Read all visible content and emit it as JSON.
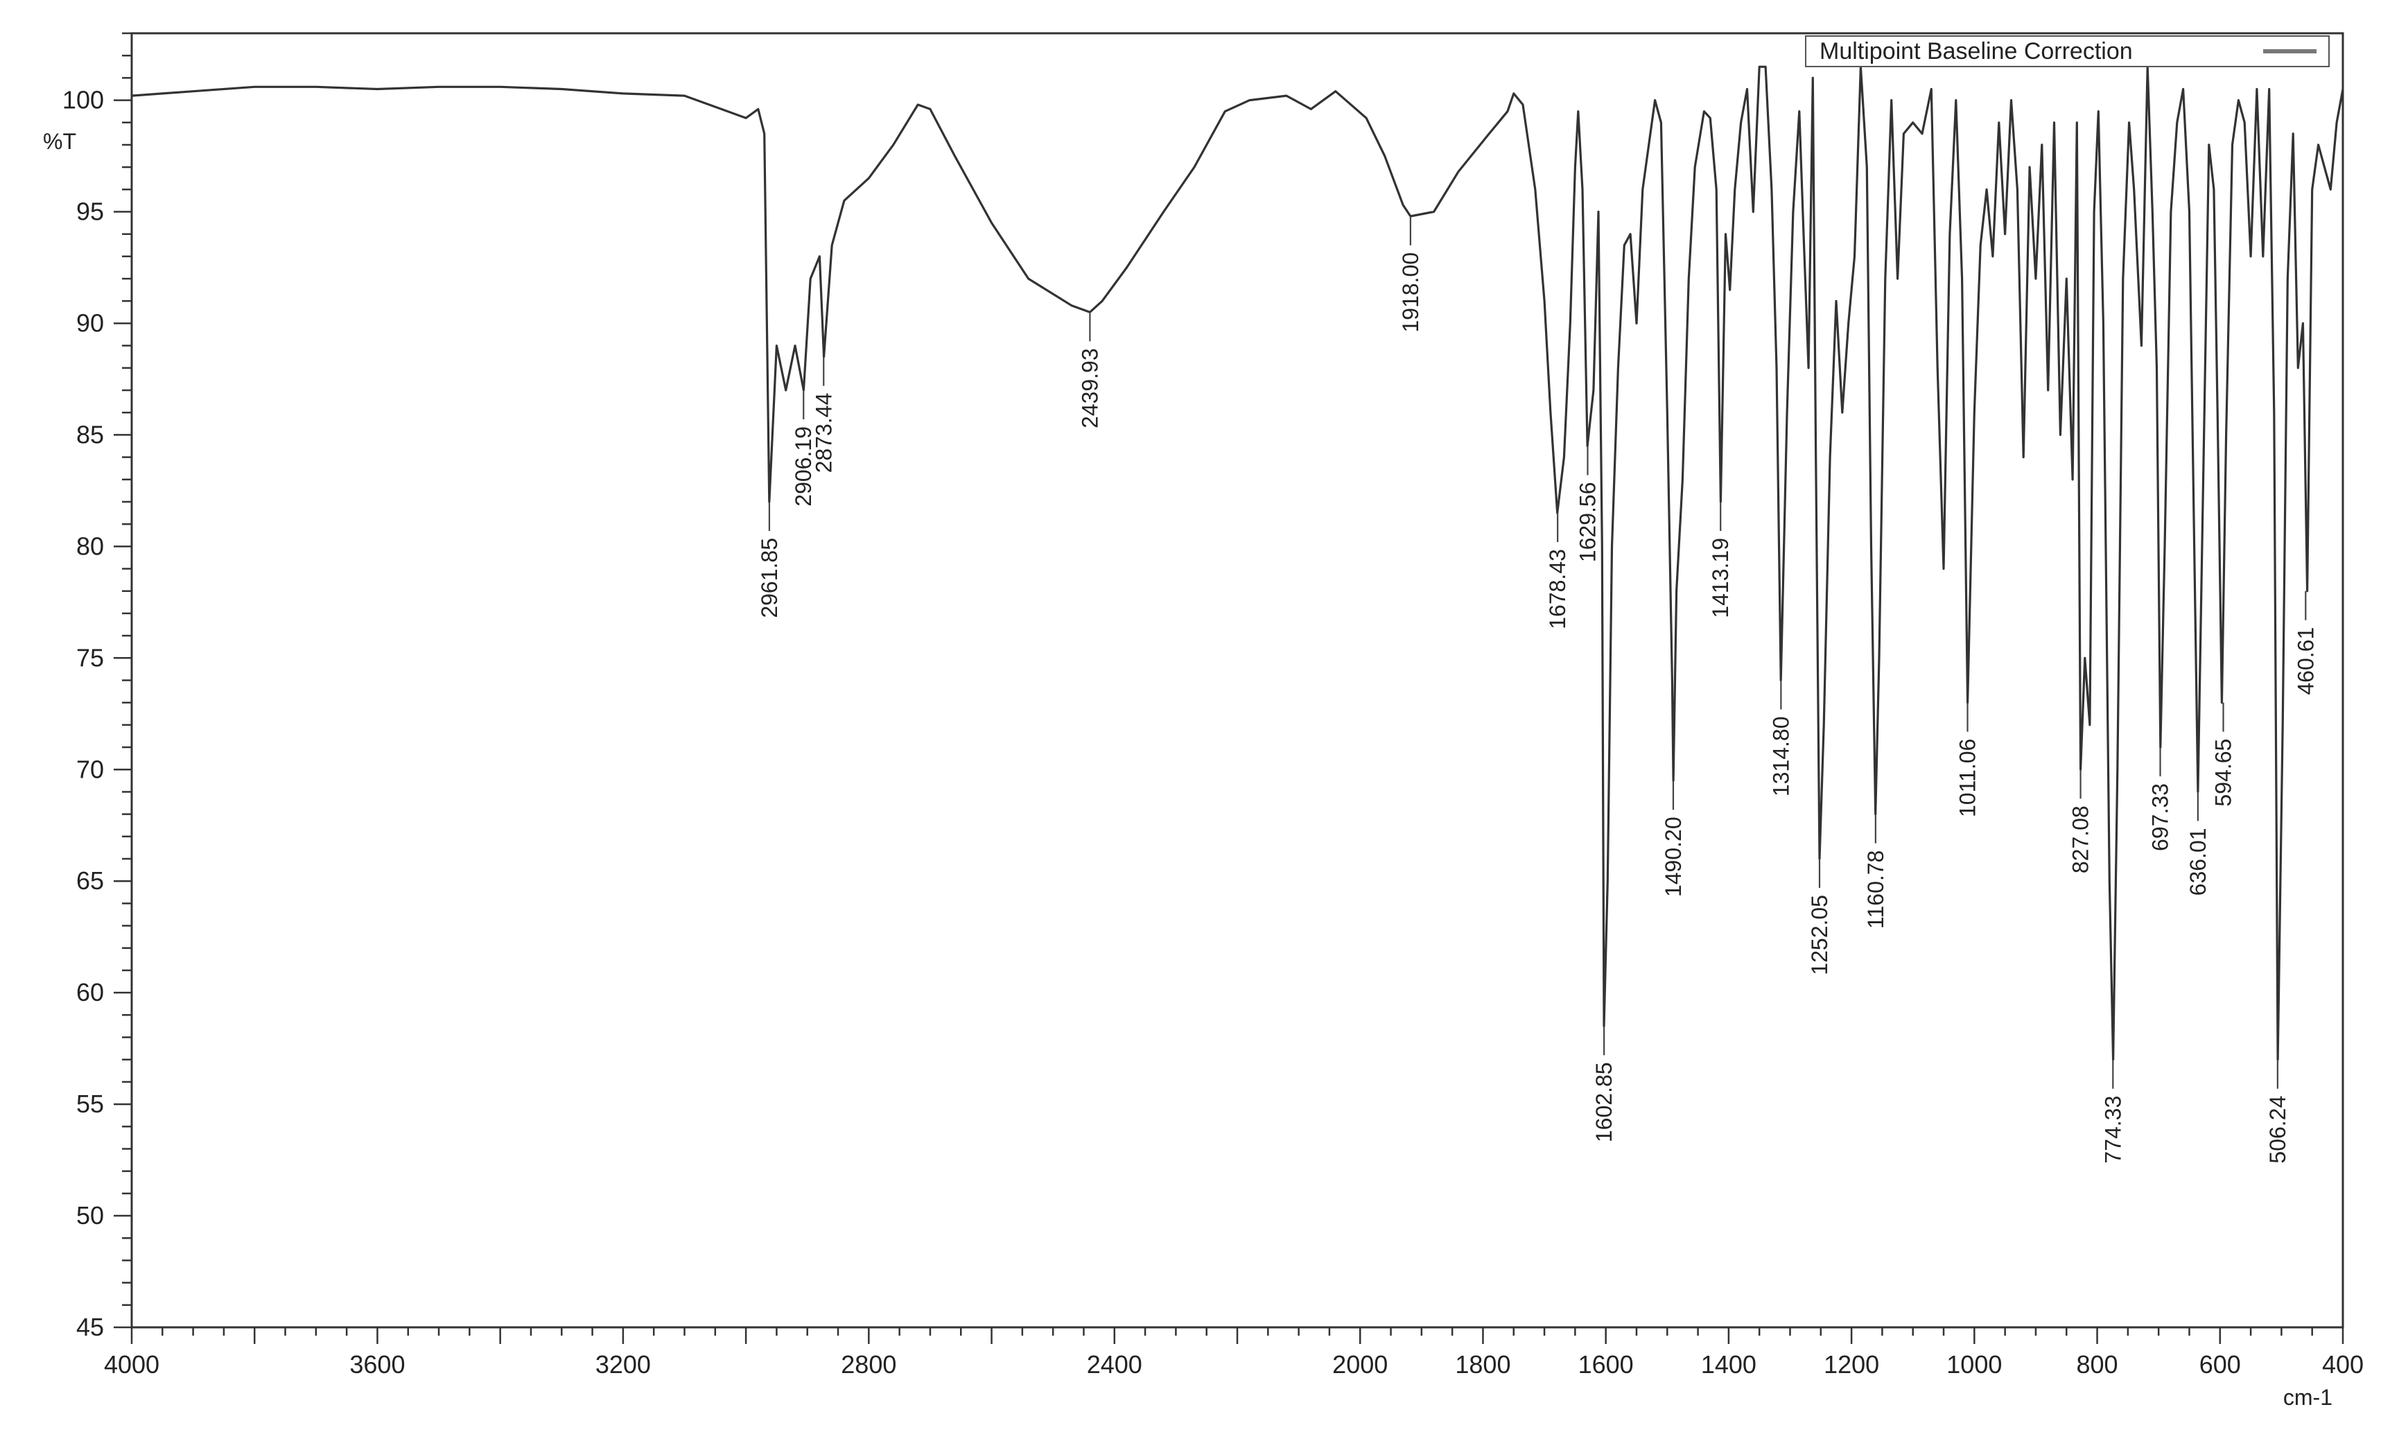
{
  "chart_data": {
    "type": "line",
    "title": "",
    "xlabel": "cm-1",
    "ylabel": "%T",
    "xlim": [
      4000,
      400
    ],
    "ylim": [
      45,
      103
    ],
    "x_reversed": true,
    "x_ticks": [
      "4000",
      "3600",
      "3200",
      "2800",
      "2400",
      "2000",
      "1800",
      "1600",
      "1400",
      "1200",
      "1000",
      "800",
      "600",
      "400"
    ],
    "y_ticks": [
      "45",
      "50",
      "55",
      "60",
      "65",
      "70",
      "75",
      "80",
      "85",
      "90",
      "95",
      "100"
    ],
    "legend": {
      "label": "Multipoint Baseline Correction",
      "position": "top-right"
    },
    "grid": false,
    "line_color": "#333333",
    "series": [
      {
        "points": [
          [
            4000,
            100.2
          ],
          [
            3900,
            100.4
          ],
          [
            3800,
            100.6
          ],
          [
            3700,
            100.6
          ],
          [
            3600,
            100.5
          ],
          [
            3500,
            100.6
          ],
          [
            3400,
            100.6
          ],
          [
            3300,
            100.5
          ],
          [
            3200,
            100.3
          ],
          [
            3100,
            100.2
          ],
          [
            3040,
            99.6
          ],
          [
            3000,
            99.2
          ],
          [
            2980,
            99.6
          ],
          [
            2970,
            98.5
          ],
          [
            2962,
            82.0
          ],
          [
            2950,
            89.0
          ],
          [
            2935,
            87.0
          ],
          [
            2920,
            89.0
          ],
          [
            2906,
            87.0
          ],
          [
            2895,
            92.0
          ],
          [
            2880,
            93.0
          ],
          [
            2873,
            88.5
          ],
          [
            2860,
            93.5
          ],
          [
            2840,
            95.5
          ],
          [
            2800,
            96.5
          ],
          [
            2760,
            98.0
          ],
          [
            2720,
            99.8
          ],
          [
            2700,
            99.6
          ],
          [
            2660,
            97.5
          ],
          [
            2600,
            94.5
          ],
          [
            2540,
            92.0
          ],
          [
            2470,
            90.8
          ],
          [
            2440,
            90.5
          ],
          [
            2420,
            91.0
          ],
          [
            2380,
            92.5
          ],
          [
            2320,
            95.0
          ],
          [
            2270,
            97.0
          ],
          [
            2220,
            99.5
          ],
          [
            2180,
            100.0
          ],
          [
            2120,
            100.2
          ],
          [
            2080,
            99.6
          ],
          [
            2040,
            100.4
          ],
          [
            1990,
            99.2
          ],
          [
            1960,
            97.5
          ],
          [
            1930,
            95.3
          ],
          [
            1918,
            94.8
          ],
          [
            1880,
            95.0
          ],
          [
            1840,
            96.8
          ],
          [
            1790,
            98.5
          ],
          [
            1760,
            99.5
          ],
          [
            1750,
            100.3
          ],
          [
            1735,
            99.8
          ],
          [
            1715,
            96.0
          ],
          [
            1700,
            91.0
          ],
          [
            1690,
            86.0
          ],
          [
            1679,
            81.5
          ],
          [
            1668,
            84.0
          ],
          [
            1658,
            90.0
          ],
          [
            1650,
            97.0
          ],
          [
            1645,
            99.5
          ],
          [
            1638,
            96.0
          ],
          [
            1630,
            84.5
          ],
          [
            1620,
            87.0
          ],
          [
            1612,
            95.0
          ],
          [
            1606,
            80.0
          ],
          [
            1603,
            58.5
          ],
          [
            1597,
            65.0
          ],
          [
            1590,
            80.0
          ],
          [
            1580,
            88.0
          ],
          [
            1570,
            93.5
          ],
          [
            1560,
            94.0
          ],
          [
            1550,
            90.0
          ],
          [
            1540,
            96.0
          ],
          [
            1530,
            98.0
          ],
          [
            1520,
            100.0
          ],
          [
            1510,
            99.0
          ],
          [
            1500,
            86.0
          ],
          [
            1492,
            74.0
          ],
          [
            1490,
            69.5
          ],
          [
            1485,
            78.0
          ],
          [
            1475,
            83.0
          ],
          [
            1465,
            92.0
          ],
          [
            1455,
            97.0
          ],
          [
            1440,
            99.5
          ],
          [
            1430,
            99.2
          ],
          [
            1420,
            96.0
          ],
          [
            1413,
            82.0
          ],
          [
            1405,
            94.0
          ],
          [
            1398,
            91.5
          ],
          [
            1390,
            96.0
          ],
          [
            1380,
            99.0
          ],
          [
            1370,
            100.5
          ],
          [
            1360,
            95.0
          ],
          [
            1350,
            101.5
          ],
          [
            1340,
            101.5
          ],
          [
            1330,
            96.0
          ],
          [
            1322,
            88.0
          ],
          [
            1315,
            74.0
          ],
          [
            1305,
            86.0
          ],
          [
            1295,
            95.0
          ],
          [
            1285,
            99.5
          ],
          [
            1278,
            94.0
          ],
          [
            1270,
            88.0
          ],
          [
            1263,
            101.0
          ],
          [
            1258,
            84.0
          ],
          [
            1252,
            66.0
          ],
          [
            1245,
            72.0
          ],
          [
            1235,
            84.0
          ],
          [
            1225,
            91.0
          ],
          [
            1215,
            86.0
          ],
          [
            1205,
            90.0
          ],
          [
            1195,
            93.0
          ],
          [
            1185,
            101.5
          ],
          [
            1175,
            97.0
          ],
          [
            1168,
            80.0
          ],
          [
            1161,
            68.0
          ],
          [
            1155,
            75.0
          ],
          [
            1145,
            92.0
          ],
          [
            1135,
            100.0
          ],
          [
            1125,
            92.0
          ],
          [
            1115,
            98.5
          ],
          [
            1100,
            99.0
          ],
          [
            1085,
            98.5
          ],
          [
            1070,
            100.5
          ],
          [
            1060,
            88.0
          ],
          [
            1050,
            79.0
          ],
          [
            1040,
            94.0
          ],
          [
            1030,
            100.0
          ],
          [
            1020,
            92.0
          ],
          [
            1011,
            73.0
          ],
          [
            1000,
            86.0
          ],
          [
            990,
            93.5
          ],
          [
            980,
            96.0
          ],
          [
            970,
            93.0
          ],
          [
            960,
            99.0
          ],
          [
            950,
            94.0
          ],
          [
            940,
            100.0
          ],
          [
            930,
            96.0
          ],
          [
            920,
            84.0
          ],
          [
            910,
            97.0
          ],
          [
            900,
            92.0
          ],
          [
            890,
            98.0
          ],
          [
            880,
            87.0
          ],
          [
            870,
            99.0
          ],
          [
            860,
            85.0
          ],
          [
            850,
            92.0
          ],
          [
            840,
            83.0
          ],
          [
            833,
            99.0
          ],
          [
            827,
            70.0
          ],
          [
            820,
            75.0
          ],
          [
            812,
            72.0
          ],
          [
            805,
            95.0
          ],
          [
            798,
            99.5
          ],
          [
            790,
            90.0
          ],
          [
            780,
            65.0
          ],
          [
            774,
            57.0
          ],
          [
            767,
            70.0
          ],
          [
            758,
            92.0
          ],
          [
            748,
            99.0
          ],
          [
            740,
            96.0
          ],
          [
            728,
            89.0
          ],
          [
            718,
            101.5
          ],
          [
            710,
            95.0
          ],
          [
            703,
            88.0
          ],
          [
            697,
            71.0
          ],
          [
            690,
            80.0
          ],
          [
            680,
            95.0
          ],
          [
            670,
            99.0
          ],
          [
            660,
            100.5
          ],
          [
            650,
            95.0
          ],
          [
            642,
            80.0
          ],
          [
            636,
            69.0
          ],
          [
            628,
            82.0
          ],
          [
            618,
            98.0
          ],
          [
            610,
            96.0
          ],
          [
            604,
            86.0
          ],
          [
            597,
            73.0
          ],
          [
            590,
            85.0
          ],
          [
            580,
            98.0
          ],
          [
            570,
            100.0
          ],
          [
            560,
            99.0
          ],
          [
            550,
            93.0
          ],
          [
            540,
            100.5
          ],
          [
            530,
            93.0
          ],
          [
            520,
            100.5
          ],
          [
            512,
            86.0
          ],
          [
            506,
            57.0
          ],
          [
            498,
            72.0
          ],
          [
            490,
            92.0
          ],
          [
            481,
            98.5
          ],
          [
            473,
            88.0
          ],
          [
            465,
            90.0
          ],
          [
            458,
            78.0
          ],
          [
            450,
            96.0
          ],
          [
            440,
            98.0
          ],
          [
            430,
            97.0
          ],
          [
            420,
            96.0
          ],
          [
            410,
            99.0
          ],
          [
            400,
            100.5
          ]
        ]
      }
    ],
    "peaks": [
      {
        "label": "2961.85",
        "x": 2961.85,
        "y": 82.0
      },
      {
        "label": "2906.19",
        "x": 2906.19,
        "y": 87.0
      },
      {
        "label": "2873.44",
        "x": 2873.44,
        "y": 88.5
      },
      {
        "label": "2439.93",
        "x": 2439.93,
        "y": 90.5
      },
      {
        "label": "1918.00",
        "x": 1918.0,
        "y": 94.8
      },
      {
        "label": "1678.43",
        "x": 1678.43,
        "y": 81.5
      },
      {
        "label": "1629.56",
        "x": 1629.56,
        "y": 84.5
      },
      {
        "label": "1602.85",
        "x": 1602.85,
        "y": 58.5
      },
      {
        "label": "1490.20",
        "x": 1490.2,
        "y": 69.5
      },
      {
        "label": "1413.19",
        "x": 1413.19,
        "y": 82.0
      },
      {
        "label": "1314.80",
        "x": 1314.8,
        "y": 74.0
      },
      {
        "label": "1252.05",
        "x": 1252.05,
        "y": 66.0
      },
      {
        "label": "1160.78",
        "x": 1160.78,
        "y": 68.0
      },
      {
        "label": "1011.06",
        "x": 1011.06,
        "y": 73.0
      },
      {
        "label": "827.08",
        "x": 827.08,
        "y": 70.0
      },
      {
        "label": "774.33",
        "x": 774.33,
        "y": 57.0
      },
      {
        "label": "697.33",
        "x": 697.33,
        "y": 71.0
      },
      {
        "label": "636.01",
        "x": 636.01,
        "y": 69.0
      },
      {
        "label": "594.65",
        "x": 594.65,
        "y": 73.0
      },
      {
        "label": "506.24",
        "x": 506.24,
        "y": 57.0
      },
      {
        "label": "460.61",
        "x": 460.61,
        "y": 78.0
      }
    ]
  }
}
